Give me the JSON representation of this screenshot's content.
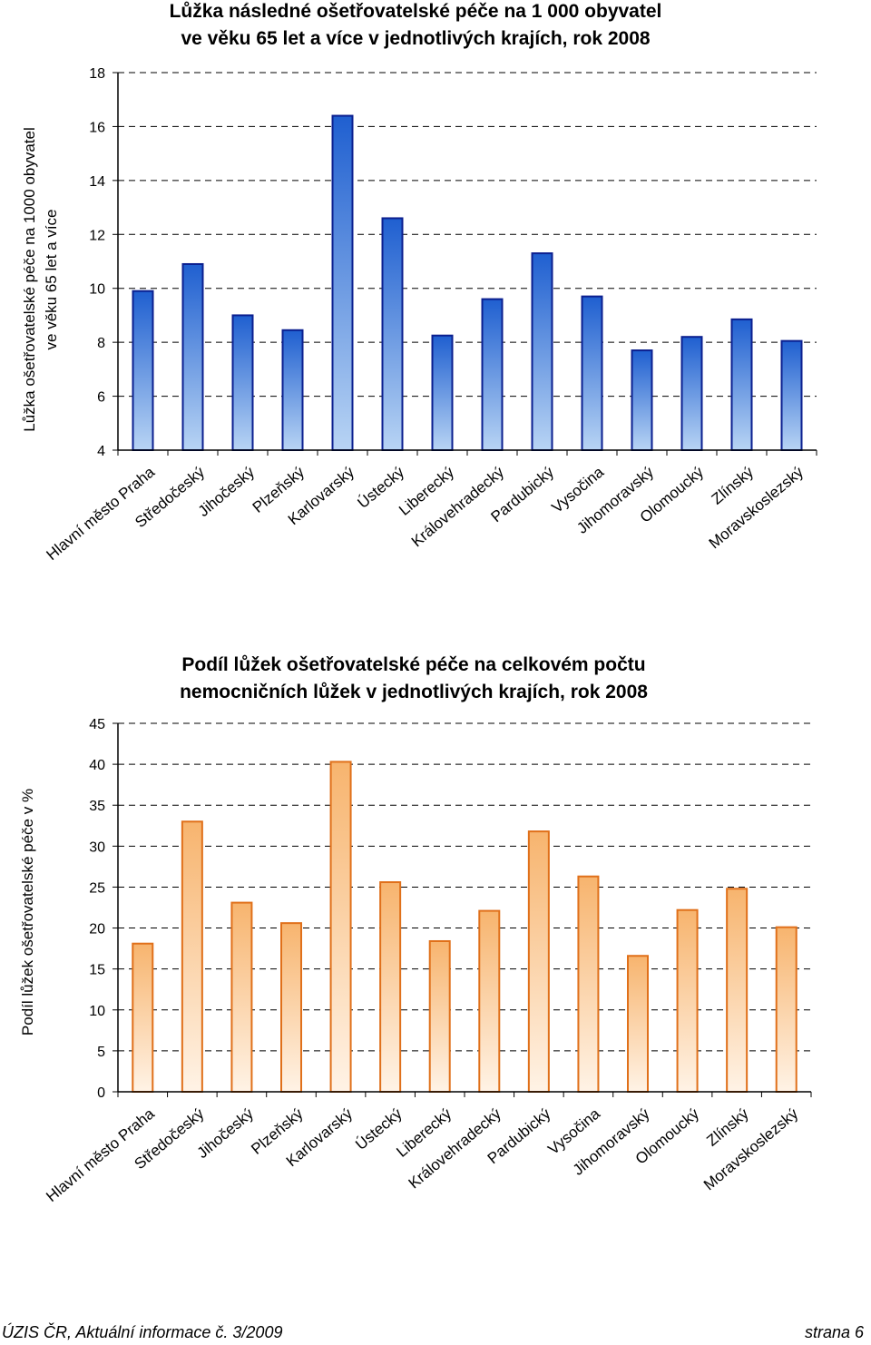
{
  "chart_data": [
    {
      "type": "bar",
      "title_lines": [
        "Lůžka následné ošetřovatelské péče na 1 000 obyvatel",
        "ve věku 65 let a více v jednotlivých krajích, rok 2008"
      ],
      "ylabel_lines": [
        "Lůžka ošetřovatelské péče na 1000 obyvatel",
        "ve věku 65 let a více"
      ],
      "xlabel": "",
      "categories": [
        "Hlavní město Praha",
        "Středočeský",
        "Jihočeský",
        "Plzeňský",
        "Karlovarský",
        "Ústecký",
        "Liberecký",
        "Královehradecký",
        "Pardubický",
        "Vysočina",
        "Jihomoravský",
        "Olomoucký",
        "Zlínský",
        "Moravskoslezský"
      ],
      "values": [
        9.9,
        10.9,
        9.0,
        8.45,
        16.4,
        12.6,
        8.25,
        9.6,
        11.3,
        9.7,
        7.7,
        8.2,
        8.85,
        8.05
      ],
      "ylim": [
        4,
        18
      ],
      "yticks": [
        4,
        6,
        8,
        10,
        12,
        14,
        16,
        18
      ],
      "grid": true,
      "colors": {
        "fill_top": "#1f5fd0",
        "fill_bottom": "#b8d4f4",
        "stroke": "#0b1f8f"
      }
    },
    {
      "type": "bar",
      "title_lines": [
        "Podíl lůžek ošetřovatelské péče na celkovém počtu",
        "nemocničních lůžek v jednotlivých krajích, rok 2008"
      ],
      "ylabel_lines": [
        "Podíl lůžek ošetřovatelské péče v %"
      ],
      "xlabel": "",
      "categories": [
        "Hlavní město Praha",
        "Středočeský",
        "Jihočeský",
        "Plzeňský",
        "Karlovarský",
        "Ústecký",
        "Liberecký",
        "Královehradecký",
        "Pardubický",
        "Vysočina",
        "Jihomoravský",
        "Olomoucký",
        "Zlínský",
        "Moravskoslezský"
      ],
      "values": [
        18.1,
        33.0,
        23.1,
        20.6,
        40.3,
        25.6,
        18.4,
        22.1,
        31.8,
        26.3,
        16.6,
        22.2,
        24.8,
        20.1
      ],
      "ylim": [
        0,
        45
      ],
      "yticks": [
        0,
        5,
        10,
        15,
        20,
        25,
        30,
        35,
        40,
        45
      ],
      "grid": true,
      "colors": {
        "fill_top": "#f7b46e",
        "fill_bottom": "#fff3e6",
        "stroke": "#e0701a"
      }
    }
  ],
  "footer": {
    "left": "ÚZIS ČR, Aktuální informace č. 3/2009",
    "right": "strana 6"
  }
}
